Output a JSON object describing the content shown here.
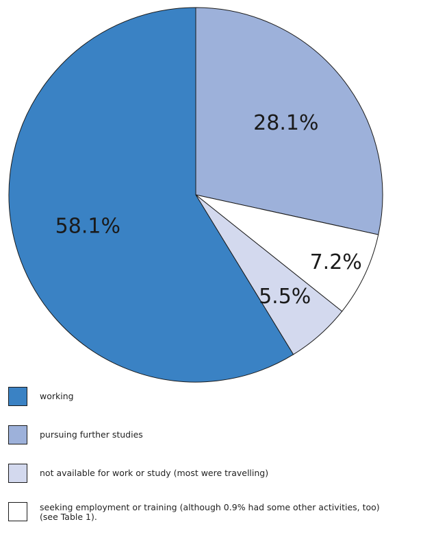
{
  "chart_data": {
    "type": "pie",
    "title": "",
    "start_angle_deg": 0,
    "direction": "clockwise",
    "slices": [
      {
        "label": "pursuing further studies",
        "value": 28.1,
        "display": "28.1%",
        "color": "#9DB1DA"
      },
      {
        "label": "seeking employment or training (although 0.9% had some other activities, too) (see Table 1).",
        "value": 7.2,
        "display": "7.2%",
        "color": "#FFFFFF"
      },
      {
        "label": "not available for work or study (most were travelling)",
        "value": 5.5,
        "display": "5.5%",
        "color": "#D3D9EE"
      },
      {
        "label": "working",
        "value": 58.1,
        "display": "58.1%",
        "color": "#3A82C4"
      }
    ]
  },
  "legend": [
    {
      "label": "working",
      "color": "#3A82C4"
    },
    {
      "label": "pursuing further studies",
      "color": "#9DB1DA"
    },
    {
      "label": "not available for work or study (most were travelling)",
      "color": "#D3D9EE"
    },
    {
      "label": "seeking employment or training (although 0.9% had some other activities, too)",
      "label_line2": "(see Table 1).",
      "color": "#FFFFFF"
    }
  ]
}
